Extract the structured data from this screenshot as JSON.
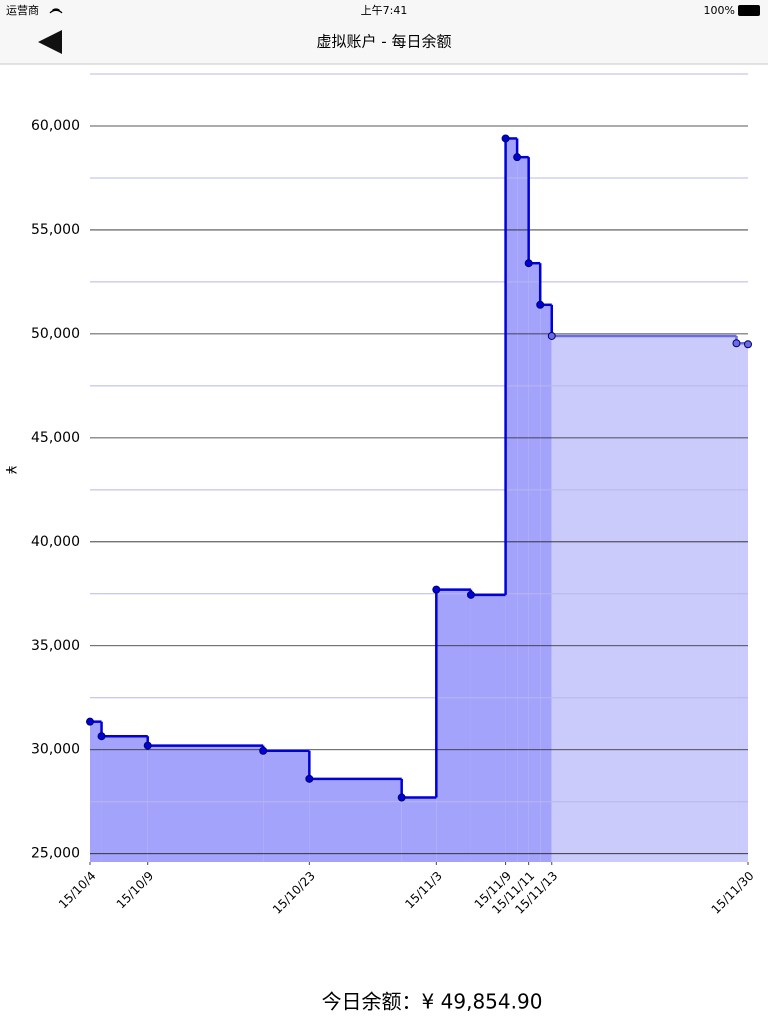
{
  "status_bar": {
    "carrier": "运营商",
    "time": "上午7:41",
    "battery": "100%"
  },
  "nav": {
    "title": "虚拟账户 - 每日余额"
  },
  "chart_data": {
    "type": "step",
    "ylabel": "¥",
    "x": [
      "15/10/4",
      "15/10/5",
      "15/10/9",
      "15/10/19",
      "15/10/23",
      "15/10/31",
      "15/11/3",
      "15/11/6",
      "15/11/9",
      "15/11/10",
      "15/11/11",
      "15/11/12",
      "15/11/13",
      "15/11/29",
      "15/11/30"
    ],
    "series": [
      {
        "color": "#0000d8",
        "fill": "#a3a3fb",
        "values": [
          31350,
          30650,
          30200,
          29950,
          28600,
          27700,
          37700,
          37450,
          59400,
          58500,
          53400,
          51400,
          49900,
          49550,
          49500
        ]
      }
    ],
    "highlight_until": "15/11/13",
    "after_color": "#6b6be6",
    "after_fill": "#cbcbfb",
    "xlim": [
      "15/10/4",
      "15/11/30"
    ],
    "xticks": [
      "15/10/4",
      "15/10/9",
      "15/10/23",
      "15/11/3",
      "15/11/9",
      "15/11/11",
      "15/11/13",
      "15/11/30"
    ],
    "ylim": [
      24600,
      62500
    ],
    "yticks": [
      {
        "value": 25000,
        "label": "25,000"
      },
      {
        "value": 30000,
        "label": "30,000"
      },
      {
        "value": 35000,
        "label": "35,000"
      },
      {
        "value": 40000,
        "label": "40,000"
      },
      {
        "value": 45000,
        "label": "45,000"
      },
      {
        "value": 50000,
        "label": "50,000"
      },
      {
        "value": 55000,
        "label": "55,000"
      },
      {
        "value": 60000,
        "label": "60,000"
      }
    ],
    "minor_grid": [
      27500,
      32500,
      37500,
      42500,
      47500,
      52500,
      57500,
      62500
    ],
    "grid": true
  },
  "footer": {
    "balance": "今日余额：¥  49,854.90"
  }
}
